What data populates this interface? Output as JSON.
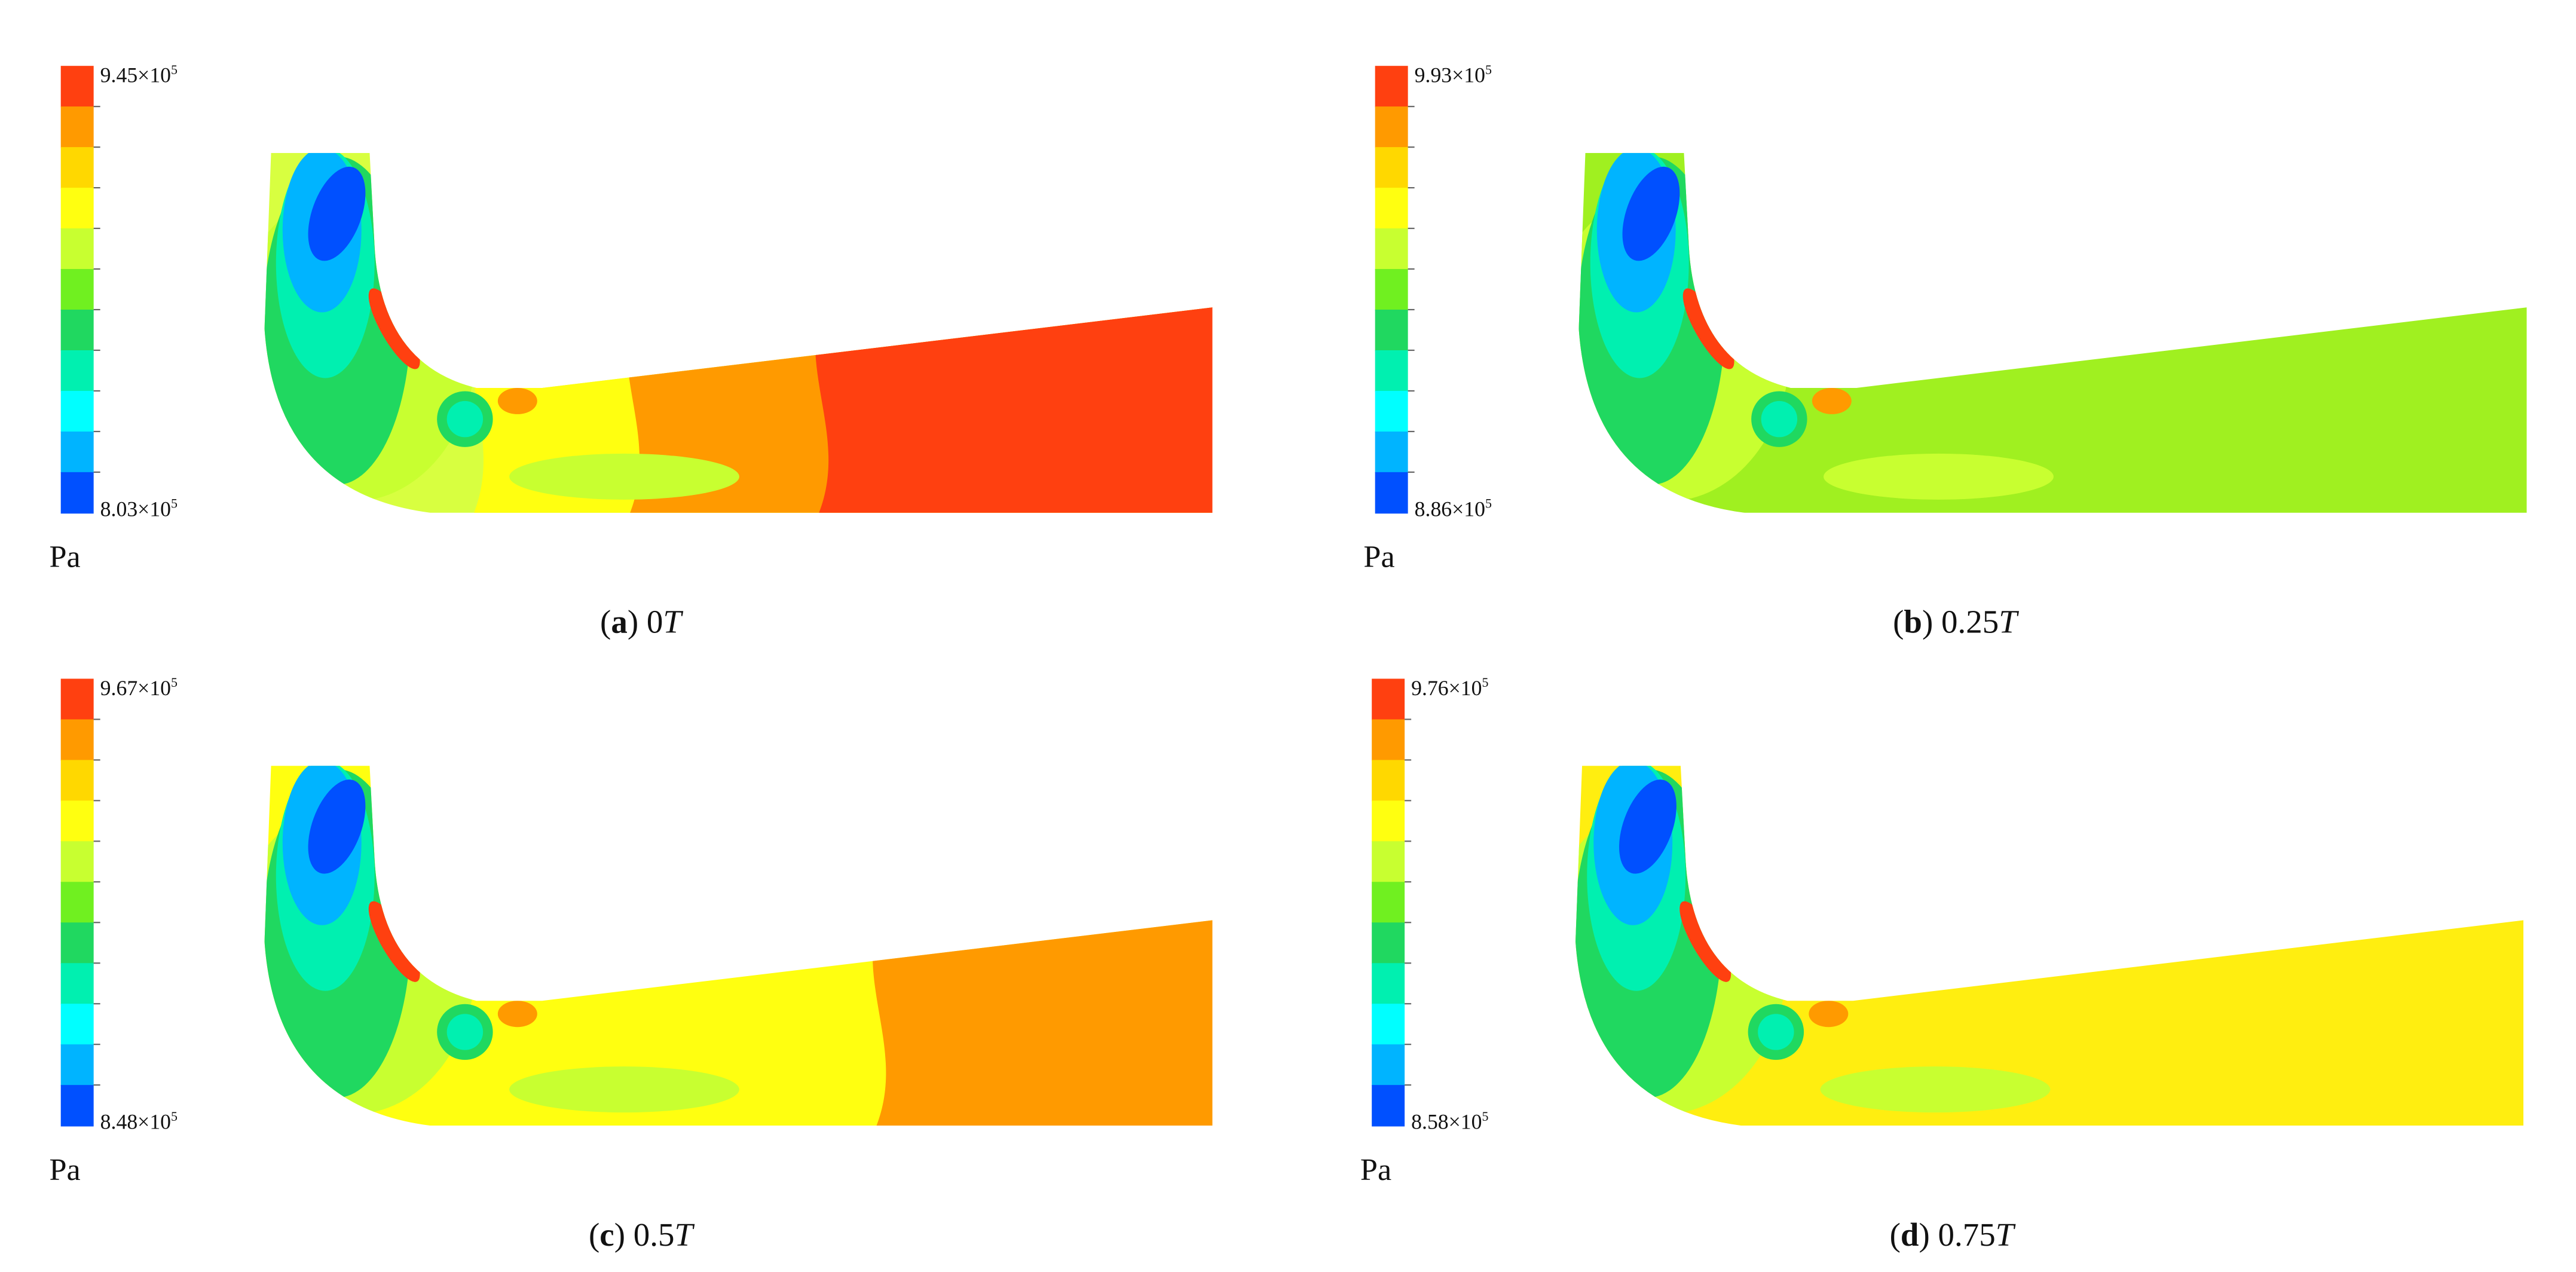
{
  "panels": [
    {
      "max_label": [
        "9.45×10",
        "5"
      ],
      "min_label": [
        "8.03×10",
        "5"
      ],
      "unit": "Pa",
      "caption": [
        "(",
        "a",
        ") 0",
        "T"
      ]
    },
    {
      "max_label": [
        "9.93×10",
        "5"
      ],
      "min_label": [
        "8.86×10",
        "5"
      ],
      "unit": "Pa",
      "caption": [
        "(",
        "b",
        ") 0.25",
        "T"
      ]
    },
    {
      "max_label": [
        "9.67×10",
        "5"
      ],
      "min_label": [
        "8.48×10",
        "5"
      ],
      "unit": "Pa",
      "caption": [
        "(",
        "c",
        ") 0.5",
        "T"
      ]
    },
    {
      "max_label": [
        "9.76×10",
        "5"
      ],
      "min_label": [
        "8.58×10",
        "5"
      ],
      "unit": "Pa",
      "caption": [
        "(",
        "d",
        ") 0.75",
        "T"
      ]
    }
  ]
}
